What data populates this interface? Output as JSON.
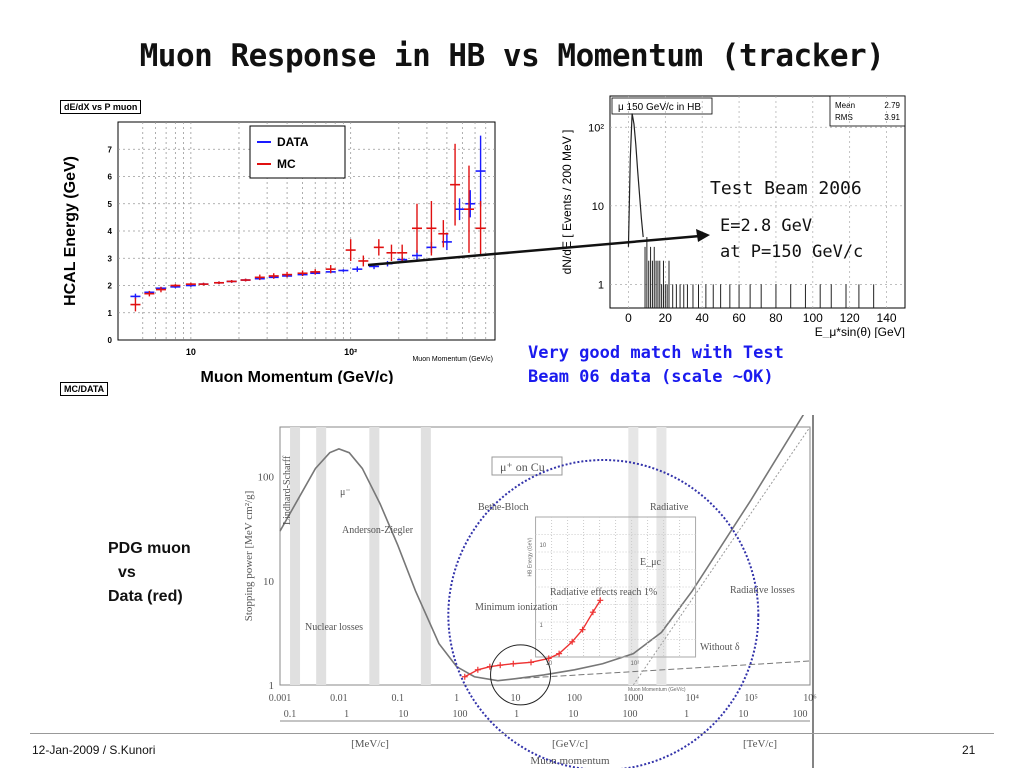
{
  "slide": {
    "title": "Muon Response in HB vs Momentum (tracker)",
    "footer_left": "12-Jan-2009 / S.Kunori",
    "page_number": "21"
  },
  "annotations": {
    "test_beam": "Test Beam 2006",
    "energy_line1": "E=2.8 GeV",
    "energy_line2": "at P=150 GeV/c",
    "match_line1": "Very good match with Test",
    "match_line2": "Beam 06 data (scale ~OK)",
    "pdg_line1": "PDG muon",
    "pdg_line2": "vs",
    "pdg_line3": "Data (red)"
  },
  "colors": {
    "data": "#1a1aff",
    "mc": "#e01010",
    "annotation_blue": "#1a1aee",
    "circle": "#3333aa"
  },
  "chart_data": [
    {
      "type": "scatter",
      "frame_title": "dE/dX vs P muon",
      "bottom_label": "MC/DATA",
      "ylabel": "HCAL Energy (GeV)",
      "xlabel": "Muon Momentum (GeV/c)",
      "xlabel_small": "Muon Momentum (GeV/c)",
      "xscale": "log",
      "xlim": [
        3.5,
        800
      ],
      "ylim": [
        0,
        8
      ],
      "x_ticks": [
        "10",
        "10²"
      ],
      "y_ticks": [
        "0",
        "1",
        "2",
        "3",
        "4",
        "5",
        "6",
        "7"
      ],
      "legend": [
        "DATA",
        "MC"
      ],
      "legend_position": "top-center",
      "grid": true,
      "series": [
        {
          "name": "DATA",
          "x": [
            4.5,
            5.5,
            6.5,
            8,
            10,
            12,
            15,
            18,
            22,
            27,
            33,
            40,
            50,
            60,
            75,
            90,
            110,
            140,
            170,
            210,
            260,
            320,
            400,
            480,
            560,
            650
          ],
          "y": [
            1.6,
            1.75,
            1.9,
            1.95,
            2.0,
            2.05,
            2.1,
            2.15,
            2.2,
            2.25,
            2.3,
            2.35,
            2.4,
            2.45,
            2.5,
            2.55,
            2.6,
            2.7,
            2.8,
            2.95,
            3.1,
            3.4,
            3.6,
            4.8,
            5.0,
            6.2
          ],
          "err": [
            0.1,
            0.05,
            0.05,
            0.05,
            0.05,
            0.05,
            0.05,
            0.05,
            0.05,
            0.05,
            0.05,
            0.05,
            0.05,
            0.05,
            0.05,
            0.05,
            0.1,
            0.1,
            0.1,
            0.1,
            0.2,
            0.2,
            0.3,
            0.4,
            0.5,
            1.3
          ]
        },
        {
          "name": "MC",
          "x": [
            4.5,
            5.5,
            6.5,
            8,
            10,
            12,
            15,
            18,
            22,
            27,
            33,
            40,
            50,
            60,
            75,
            100,
            120,
            150,
            180,
            210,
            260,
            320,
            380,
            450,
            550,
            650
          ],
          "y": [
            1.3,
            1.7,
            1.85,
            2.0,
            2.05,
            2.05,
            2.1,
            2.15,
            2.2,
            2.3,
            2.35,
            2.4,
            2.45,
            2.5,
            2.6,
            3.3,
            2.9,
            3.4,
            3.2,
            3.2,
            4.1,
            4.1,
            3.9,
            5.7,
            4.8,
            4.1
          ],
          "err": [
            0.25,
            0.1,
            0.1,
            0.05,
            0.05,
            0.05,
            0.05,
            0.05,
            0.05,
            0.1,
            0.1,
            0.1,
            0.1,
            0.1,
            0.15,
            0.4,
            0.2,
            0.3,
            0.3,
            0.3,
            0.9,
            1.0,
            0.5,
            1.5,
            1.6,
            1.0
          ]
        }
      ]
    },
    {
      "type": "bar",
      "title": "μ 150 GeV/c in HB",
      "xlabel": "E_μ*sin(θ) [GeV]",
      "ylabel": "dN/dE [ Events / 200 MeV ]",
      "yscale": "log",
      "xlim": [
        -10,
        150
      ],
      "ylim": [
        0.5,
        250
      ],
      "x_ticks": [
        "0",
        "20",
        "40",
        "60",
        "80",
        "100",
        "120",
        "140"
      ],
      "y_ticks": [
        "1",
        "10",
        "10²"
      ],
      "stats": [
        {
          "label": "Mean",
          "value": "2.79"
        },
        {
          "label": "RMS",
          "value": "3.91"
        }
      ],
      "peak_x": [
        0,
        1,
        2,
        3,
        4,
        5,
        6,
        7,
        8
      ],
      "peak_y": [
        3,
        40,
        150,
        110,
        60,
        28,
        14,
        7,
        4
      ],
      "tail_x": [
        9,
        10,
        11,
        12,
        13,
        14,
        15,
        16,
        17,
        18,
        19,
        20,
        21,
        22,
        24,
        26,
        28,
        30,
        32,
        35,
        38,
        42,
        46,
        50,
        55,
        60,
        66,
        72,
        80,
        88,
        96,
        104,
        110,
        118,
        125,
        133
      ],
      "tail_y": [
        3,
        4,
        2,
        3,
        2,
        3,
        2,
        2,
        2,
        1,
        2,
        1,
        1,
        2,
        1,
        1,
        1,
        1,
        1,
        1,
        1,
        1,
        1,
        1,
        1,
        1,
        1,
        1,
        1,
        1,
        1,
        1,
        1,
        1,
        1,
        1
      ]
    },
    {
      "type": "line",
      "title": "μ⁺ on Cu",
      "ylabel": "Stopping power [MeV cm²/g]",
      "xlabel": "Muon momentum",
      "xscale": "log",
      "yscale": "log",
      "x_ticks_top": [
        "0.001",
        "0.01",
        "0.1",
        "1",
        "10",
        "100",
        "1000",
        "10⁴",
        "10⁵",
        "10⁶"
      ],
      "x_ticks_bottom": [
        "0.1",
        "1",
        "10",
        "100",
        "1",
        "10",
        "100",
        "1",
        "10",
        "100"
      ],
      "y_ticks": [
        "1",
        "10",
        "100"
      ],
      "unit_labels": [
        "[MeV/c]",
        "[GeV/c]",
        "[TeV/c]"
      ],
      "region_labels": [
        "Lindhard-Scharff",
        "Anderson-Ziegler",
        "Nuclear losses",
        "Bethe-Bloch",
        "Minimum ionization",
        "Radiative",
        "Radiative effects reach 1%",
        "Radiative losses",
        "Without δ",
        "μ⁻",
        "E_μc"
      ],
      "inset_ylabel": "HB Energy (GeV)",
      "inset_xlabel": "Muon Momentum (GeV/c)",
      "inset_x_ticks": [
        "10",
        "10²"
      ],
      "inset_y_ticks": [
        "1",
        "10"
      ],
      "curve_p": [
        0.001,
        0.002,
        0.004,
        0.007,
        0.01,
        0.015,
        0.025,
        0.05,
        0.1,
        0.2,
        0.5,
        1,
        2,
        5,
        10,
        30,
        100,
        300,
        1000,
        3000,
        10000,
        100000,
        1000000
      ],
      "curve_s": [
        30,
        60,
        120,
        170,
        185,
        170,
        120,
        55,
        22,
        8,
        2.5,
        1.5,
        1.2,
        1.1,
        1.15,
        1.25,
        1.4,
        1.6,
        2.0,
        3.2,
        8,
        60,
        500
      ],
      "data_points_p": [
        3,
        5,
        8,
        12,
        20,
        40,
        80,
        120,
        200,
        300,
        450,
        600
      ],
      "data_points_s": [
        1.2,
        1.4,
        1.5,
        1.55,
        1.6,
        1.65,
        1.8,
        2.0,
        2.6,
        3.4,
        5.0,
        6.5
      ]
    }
  ]
}
